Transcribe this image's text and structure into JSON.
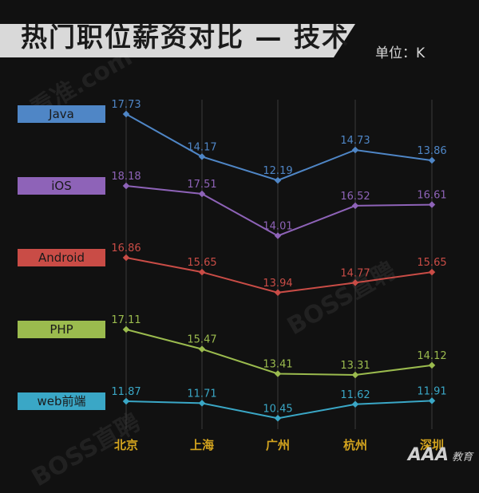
{
  "header": {
    "title": "热门职位薪资对比 — 技术",
    "unit": "单位：K"
  },
  "watermarks": [
    "看准.com",
    "BOSS直聘",
    "BOSS直聘"
  ],
  "footer": {
    "logo": "AAA",
    "logo_sub": "教育"
  },
  "colors": {
    "background": "#111111",
    "banner": "#d9d9d9",
    "gridline": "#3a3a3a",
    "category_label": "#d4a41e"
  },
  "chart_data": {
    "type": "line",
    "title": "热门职位薪资对比 — 技术",
    "ylabel": "单位：K",
    "categories": [
      "北京",
      "上海",
      "广州",
      "杭州",
      "深圳"
    ],
    "grid": true,
    "series": [
      {
        "name": "Java",
        "color": "#4f86c6",
        "values": [
          17.73,
          14.17,
          12.19,
          14.73,
          13.86
        ]
      },
      {
        "name": "iOS",
        "color": "#8e63b8",
        "values": [
          18.18,
          17.51,
          14.01,
          16.52,
          16.61
        ]
      },
      {
        "name": "Android",
        "color": "#c94c46",
        "values": [
          16.86,
          15.65,
          13.94,
          14.77,
          15.65
        ]
      },
      {
        "name": "PHP",
        "color": "#9bbb4e",
        "values": [
          17.11,
          15.47,
          13.41,
          13.31,
          14.12
        ]
      },
      {
        "name": "web前端",
        "color": "#3aa7c6",
        "values": [
          11.87,
          11.71,
          10.45,
          11.62,
          11.91
        ]
      }
    ]
  }
}
